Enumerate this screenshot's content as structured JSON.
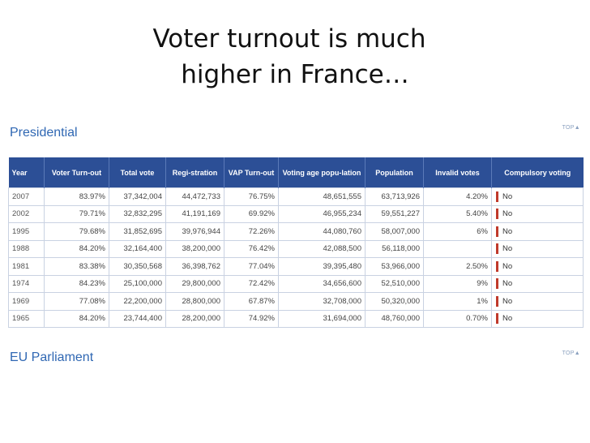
{
  "title": {
    "line1": "Voter turnout is much",
    "line2": "higher in France…"
  },
  "sections": {
    "presidential": "Presidential",
    "eu": "EU Parliament",
    "top_label": "TOP"
  },
  "table": {
    "headers": [
      "Year",
      "Voter Turn-out",
      "Total vote",
      "Regi-stration",
      "VAP Turn-out",
      "Voting age popu-lation",
      "Population",
      "Invalid votes",
      "Compulsory voting"
    ],
    "rows": [
      [
        "2007",
        "83.97%",
        "37,342,004",
        "44,472,733",
        "76.75%",
        "48,651,555",
        "63,713,926",
        "4.20%",
        "No"
      ],
      [
        "2002",
        "79.71%",
        "32,832,295",
        "41,191,169",
        "69.92%",
        "46,955,234",
        "59,551,227",
        "5.40%",
        "No"
      ],
      [
        "1995",
        "79.68%",
        "31,852,695",
        "39,976,944",
        "72.26%",
        "44,080,760",
        "58,007,000",
        "6%",
        "No"
      ],
      [
        "1988",
        "84.20%",
        "32,164,400",
        "38,200,000",
        "76.42%",
        "42,088,500",
        "56,118,000",
        "",
        "No"
      ],
      [
        "1981",
        "83.38%",
        "30,350,568",
        "36,398,762",
        "77.04%",
        "39,395,480",
        "53,966,000",
        "2.50%",
        "No"
      ],
      [
        "1974",
        "84.23%",
        "25,100,000",
        "29,800,000",
        "72.42%",
        "34,656,600",
        "52,510,000",
        "9%",
        "No"
      ],
      [
        "1969",
        "77.08%",
        "22,200,000",
        "28,800,000",
        "67.87%",
        "32,708,000",
        "50,320,000",
        "1%",
        "No"
      ],
      [
        "1965",
        "84.20%",
        "23,744,400",
        "28,200,000",
        "74.92%",
        "31,694,000",
        "48,760,000",
        "0.70%",
        "No"
      ]
    ]
  },
  "colors": {
    "header_bg": "#2c4f96",
    "section_title": "#2f67b3",
    "no_marker": "#c0392b"
  },
  "icons": {
    "top": "triangle-up-icon",
    "compulsory_marker": "red-bar-icon"
  }
}
